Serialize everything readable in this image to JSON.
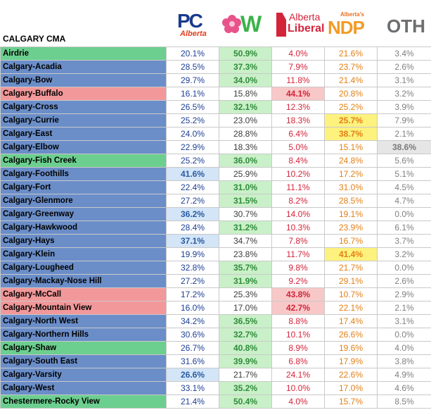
{
  "region_title": "CALGARY CMA",
  "logos": {
    "pc": {
      "name": "pc-alberta-logo",
      "line1": "PC",
      "line2": "Alberta"
    },
    "wildrose": {
      "name": "wildrose-logo",
      "text": "W"
    },
    "liberal": {
      "name": "alberta-liberal-logo",
      "line1": "Alberta",
      "line2": "Liberal"
    },
    "ndp": {
      "name": "alberta-ndp-logo",
      "small": "Alberta's",
      "big": "NDP"
    },
    "oth": {
      "name": "other-label",
      "text": "OTH"
    }
  },
  "colors": {
    "pc_row": "#6b8ec9",
    "wildrose_row": "#6ccf8f",
    "liberal_row": "#f2989a"
  },
  "rows": [
    {
      "name": "Airdrie",
      "winner": "w",
      "pc": "20.1%",
      "w": "50.9%",
      "lib": "4.0%",
      "ndp": "21.6%",
      "oth": "3.4%"
    },
    {
      "name": "Calgary-Acadia",
      "winner": "w",
      "pc": "28.5%",
      "w": "37.3%",
      "lib": "7.9%",
      "ndp": "23.7%",
      "oth": "2.6%"
    },
    {
      "name": "Calgary-Bow",
      "winner": "w",
      "pc": "29.7%",
      "w": "34.0%",
      "lib": "11.8%",
      "ndp": "21.4%",
      "oth": "3.1%"
    },
    {
      "name": "Calgary-Buffalo",
      "winner": "lib",
      "pc": "16.1%",
      "w": "15.8%",
      "lib": "44.1%",
      "ndp": "20.8%",
      "oth": "3.2%"
    },
    {
      "name": "Calgary-Cross",
      "winner": "w",
      "pc": "26.5%",
      "w": "32.1%",
      "lib": "12.3%",
      "ndp": "25.2%",
      "oth": "3.9%"
    },
    {
      "name": "Calgary-Currie",
      "winner": "ndp",
      "pc": "25.2%",
      "w": "23.0%",
      "lib": "18.3%",
      "ndp": "25.7%",
      "oth": "7.9%"
    },
    {
      "name": "Calgary-East",
      "winner": "ndp",
      "pc": "24.0%",
      "w": "28.8%",
      "lib": "6.4%",
      "ndp": "38.7%",
      "oth": "2.1%"
    },
    {
      "name": "Calgary-Elbow",
      "winner": "oth",
      "pc": "22.9%",
      "w": "18.3%",
      "lib": "5.0%",
      "ndp": "15.1%",
      "oth": "38.6%"
    },
    {
      "name": "Calgary-Fish Creek",
      "winner": "w",
      "pc": "25.2%",
      "w": "36.0%",
      "lib": "8.4%",
      "ndp": "24.8%",
      "oth": "5.6%"
    },
    {
      "name": "Calgary-Foothills",
      "winner": "pc",
      "pc": "41.6%",
      "w": "25.9%",
      "lib": "10.2%",
      "ndp": "17.2%",
      "oth": "5.1%"
    },
    {
      "name": "Calgary-Fort",
      "winner": "w",
      "pc": "22.4%",
      "w": "31.0%",
      "lib": "11.1%",
      "ndp": "31.0%",
      "oth": "4.5%"
    },
    {
      "name": "Calgary-Glenmore",
      "winner": "w",
      "pc": "27.2%",
      "w": "31.5%",
      "lib": "8.2%",
      "ndp": "28.5%",
      "oth": "4.7%"
    },
    {
      "name": "Calgary-Greenway",
      "winner": "pc",
      "pc": "36.2%",
      "w": "30.7%",
      "lib": "14.0%",
      "ndp": "19.1%",
      "oth": "0.0%"
    },
    {
      "name": "Calgary-Hawkwood",
      "winner": "w",
      "pc": "28.4%",
      "w": "31.2%",
      "lib": "10.3%",
      "ndp": "23.9%",
      "oth": "6.1%"
    },
    {
      "name": "Calgary-Hays",
      "winner": "pc",
      "pc": "37.1%",
      "w": "34.7%",
      "lib": "7.8%",
      "ndp": "16.7%",
      "oth": "3.7%"
    },
    {
      "name": "Calgary-Klein",
      "winner": "ndp",
      "pc": "19.9%",
      "w": "23.8%",
      "lib": "11.7%",
      "ndp": "41.4%",
      "oth": "3.2%"
    },
    {
      "name": "Calgary-Lougheed",
      "winner": "w",
      "pc": "32.8%",
      "w": "35.7%",
      "lib": "9.8%",
      "ndp": "21.7%",
      "oth": "0.0%"
    },
    {
      "name": "Calgary-Mackay-Nose Hill",
      "winner": "w",
      "pc": "27.2%",
      "w": "31.9%",
      "lib": "9.2%",
      "ndp": "29.1%",
      "oth": "2.6%"
    },
    {
      "name": "Calgary-McCall",
      "winner": "lib",
      "pc": "17.2%",
      "w": "25.3%",
      "lib": "43.8%",
      "ndp": "10.7%",
      "oth": "2.9%"
    },
    {
      "name": "Calgary-Mountain View",
      "winner": "lib",
      "pc": "16.0%",
      "w": "17.0%",
      "lib": "42.7%",
      "ndp": "22.1%",
      "oth": "2.1%"
    },
    {
      "name": "Calgary-North West",
      "winner": "w",
      "pc": "34.2%",
      "w": "36.5%",
      "lib": "8.8%",
      "ndp": "17.4%",
      "oth": "3.1%"
    },
    {
      "name": "Calgary-Northern Hills",
      "winner": "w",
      "pc": "30.6%",
      "w": "32.7%",
      "lib": "10.1%",
      "ndp": "26.6%",
      "oth": "0.0%"
    },
    {
      "name": "Calgary-Shaw",
      "winner": "w",
      "pc": "26.7%",
      "w": "40.8%",
      "lib": "8.9%",
      "ndp": "19.6%",
      "oth": "4.0%"
    },
    {
      "name": "Calgary-South East",
      "winner": "w",
      "pc": "31.6%",
      "w": "39.9%",
      "lib": "6.8%",
      "ndp": "17.9%",
      "oth": "3.8%"
    },
    {
      "name": "Calgary-Varsity",
      "winner": "pc",
      "pc": "26.6%",
      "w": "21.7%",
      "lib": "24.1%",
      "ndp": "22.6%",
      "oth": "4.9%"
    },
    {
      "name": "Calgary-West",
      "winner": "w",
      "pc": "33.1%",
      "w": "35.2%",
      "lib": "10.0%",
      "ndp": "17.0%",
      "oth": "4.6%"
    },
    {
      "name": "Chestermere-Rocky View",
      "winner": "w",
      "pc": "21.4%",
      "w": "50.4%",
      "lib": "4.0%",
      "ndp": "15.7%",
      "oth": "8.5%"
    }
  ],
  "row_name_colors": {
    "Airdrie": "w",
    "Calgary-Acadia": "pc",
    "Calgary-Bow": "pc",
    "Calgary-Buffalo": "lib",
    "Calgary-Cross": "pc",
    "Calgary-Currie": "pc",
    "Calgary-East": "pc",
    "Calgary-Elbow": "pc",
    "Calgary-Fish Creek": "w",
    "Calgary-Foothills": "pc",
    "Calgary-Fort": "pc",
    "Calgary-Glenmore": "pc",
    "Calgary-Greenway": "pc",
    "Calgary-Hawkwood": "pc",
    "Calgary-Hays": "pc",
    "Calgary-Klein": "pc",
    "Calgary-Lougheed": "pc",
    "Calgary-Mackay-Nose Hill": "pc",
    "Calgary-McCall": "lib",
    "Calgary-Mountain View": "lib",
    "Calgary-North West": "pc",
    "Calgary-Northern Hills": "pc",
    "Calgary-Shaw": "w",
    "Calgary-South East": "pc",
    "Calgary-Varsity": "pc",
    "Calgary-West": "pc",
    "Chestermere-Rocky View": "w"
  }
}
